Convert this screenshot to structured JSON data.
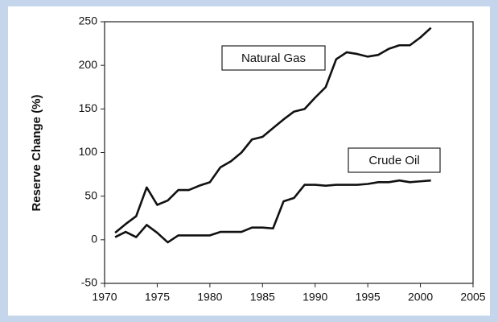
{
  "chart_data": {
    "type": "line",
    "y_label": "Reserve Change (%)",
    "x": [
      1971,
      1972,
      1973,
      1974,
      1975,
      1976,
      1977,
      1978,
      1979,
      1980,
      1981,
      1982,
      1983,
      1984,
      1985,
      1986,
      1987,
      1988,
      1989,
      1990,
      1991,
      1992,
      1993,
      1994,
      1995,
      1996,
      1997,
      1998,
      1999,
      2000,
      2001
    ],
    "series": [
      {
        "name": "Natural Gas",
        "color": "#111111",
        "values": [
          8,
          18,
          27,
          60,
          40,
          45,
          57,
          57,
          62,
          66,
          83,
          90,
          100,
          115,
          118,
          128,
          138,
          147,
          150,
          163,
          175,
          207,
          215,
          213,
          210,
          212,
          219,
          223,
          223,
          232,
          243
        ]
      },
      {
        "name": "Crude Oil",
        "color": "#111111",
        "values": [
          3,
          9,
          3,
          17,
          8,
          -3,
          5,
          5,
          5,
          5,
          9,
          9,
          9,
          14,
          14,
          13,
          44,
          48,
          63,
          63,
          62,
          63,
          63,
          63,
          64,
          66,
          66,
          68,
          66,
          67,
          68
        ]
      }
    ],
    "xlim": [
      1970,
      2005
    ],
    "xticks": [
      1970,
      1975,
      1980,
      1985,
      1990,
      1995,
      2000,
      2005
    ],
    "ylim": [
      -50,
      250
    ],
    "yticks": [
      -50,
      0,
      50,
      100,
      150,
      200,
      250
    ],
    "grid": false
  }
}
